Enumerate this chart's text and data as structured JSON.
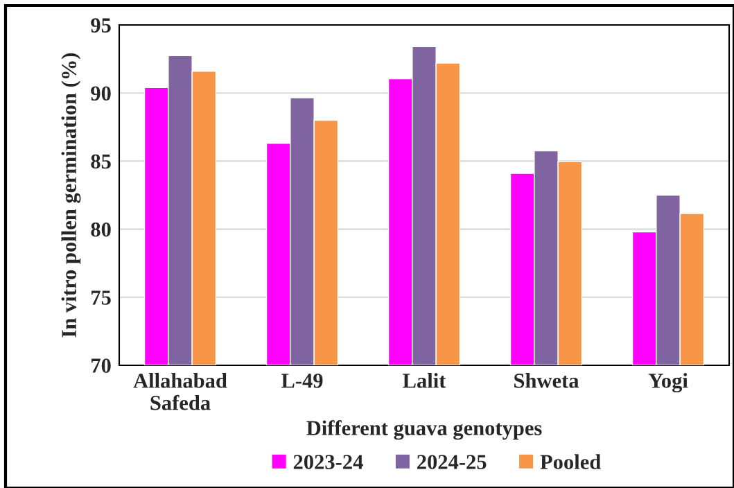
{
  "chart_data": {
    "type": "bar",
    "xlabel": "Different guava genotypes",
    "ylabel": "In vitro pollen germination (%)",
    "categories": [
      "Allahabad\nSafeda",
      "L-49",
      "Lalit",
      "Shweta",
      "Yogi"
    ],
    "series": [
      {
        "name": "2023-24",
        "color": "#ff00ff",
        "values": [
          90.4,
          86.3,
          91.05,
          84.1,
          79.8
        ]
      },
      {
        "name": "2024-25",
        "color": "#8064a2",
        "values": [
          92.75,
          89.65,
          93.4,
          85.75,
          82.5
        ]
      },
      {
        "name": "Pooled",
        "color": "#f79646",
        "values": [
          91.6,
          88.0,
          92.2,
          84.95,
          81.15
        ]
      }
    ],
    "ylim": [
      70,
      95
    ],
    "yticks": [
      70,
      75,
      80,
      85,
      90,
      95
    ],
    "grid": "y",
    "legend": "bottom"
  }
}
